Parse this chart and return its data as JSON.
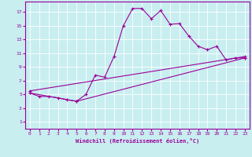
{
  "xlabel": "Windchill (Refroidissement éolien,°C)",
  "ylabel": "",
  "bg_color": "#c8eef0",
  "line_color": "#990099",
  "grid_color": "#ffffff",
  "xlim": [
    -0.5,
    23.5
  ],
  "ylim": [
    0,
    18.5
  ],
  "xticks": [
    0,
    1,
    2,
    3,
    4,
    5,
    6,
    7,
    8,
    9,
    10,
    11,
    12,
    13,
    14,
    15,
    16,
    17,
    18,
    19,
    20,
    21,
    22,
    23
  ],
  "yticks": [
    1,
    3,
    5,
    7,
    9,
    11,
    13,
    15,
    17
  ],
  "line1_x": [
    0,
    1,
    2,
    3,
    4,
    5,
    6,
    7,
    8,
    9,
    10,
    11,
    12,
    13,
    14,
    15,
    16,
    17,
    18,
    19,
    20,
    21,
    22,
    23
  ],
  "line1_y": [
    5.2,
    4.7,
    4.7,
    4.5,
    4.2,
    4.0,
    5.0,
    7.8,
    7.5,
    10.5,
    15.0,
    17.5,
    17.5,
    16.0,
    17.2,
    15.2,
    15.3,
    13.5,
    12.0,
    11.5,
    12.0,
    10.0,
    10.3,
    10.3
  ],
  "line2_x": [
    0,
    5,
    23
  ],
  "line2_y": [
    5.2,
    4.0,
    10.3
  ],
  "line3_x": [
    0,
    23
  ],
  "line3_y": [
    5.5,
    10.5
  ],
  "marker": "+"
}
